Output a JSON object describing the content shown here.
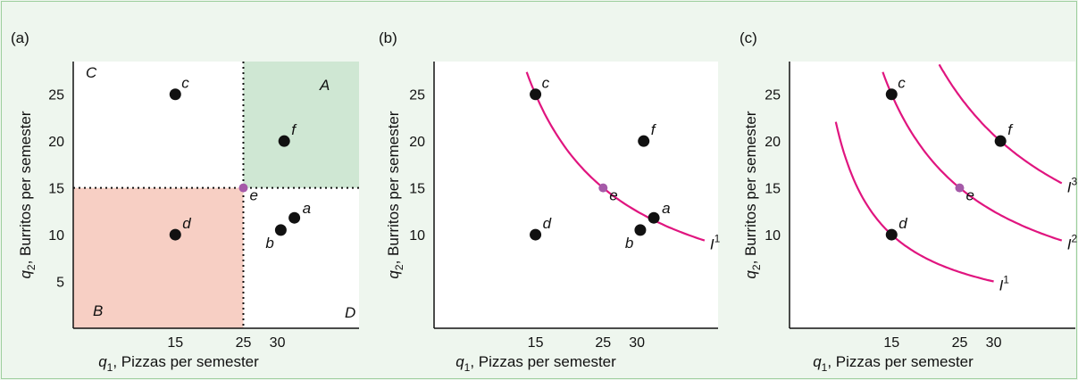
{
  "colors": {
    "background": "#eef6ee",
    "border": "#9ecf9e",
    "region_A": "#cfe7d3",
    "region_B": "#f7cfc4",
    "curve": "#e0157f",
    "point_e": "#a55aa8",
    "point": "#111111"
  },
  "chart_data": [
    {
      "type": "scatter",
      "panel_label": "(a)",
      "xlabel_var": "q",
      "xlabel_sub": "1",
      "xlabel_text": ", Pizzas per semester",
      "ylabel_var": "q",
      "ylabel_sub": "2",
      "ylabel_text": ", Burritos per semester",
      "xlim": [
        0,
        42
      ],
      "ylim": [
        0,
        28.5
      ],
      "xticks": [
        15,
        25,
        30
      ],
      "yticks": [
        5,
        10,
        15,
        20,
        25
      ],
      "points": [
        {
          "label": "c",
          "x": 15,
          "y": 25
        },
        {
          "label": "f",
          "x": 31,
          "y": 20
        },
        {
          "label": "d",
          "x": 15,
          "y": 10
        },
        {
          "label": "a",
          "x": 32.5,
          "y": 11.8
        },
        {
          "label": "b",
          "x": 30.5,
          "y": 10.5
        },
        {
          "label": "e",
          "x": 25,
          "y": 15,
          "highlight": true
        }
      ],
      "regions": [
        {
          "label": "A",
          "x": [
            25,
            42
          ],
          "y": [
            15,
            28.5
          ],
          "color": "#cfe7d3"
        },
        {
          "label": "B",
          "x": [
            0,
            25
          ],
          "y": [
            0,
            15
          ],
          "color": "#f7cfc4"
        },
        {
          "label": "C",
          "x": [
            0,
            25
          ],
          "y": [
            15,
            28.5
          ]
        },
        {
          "label": "D",
          "x": [
            25,
            42
          ],
          "y": [
            0,
            15
          ]
        }
      ],
      "reference_lines": {
        "x": 25,
        "y": 15
      }
    },
    {
      "type": "line",
      "panel_label": "(b)",
      "xlabel_var": "q",
      "xlabel_sub": "1",
      "xlabel_text": ", Pizzas per semester",
      "ylabel_var": "q",
      "ylabel_sub": "2",
      "ylabel_text": ", Burritos per semester",
      "xlim": [
        0,
        42
      ],
      "ylim": [
        0,
        28.5
      ],
      "xticks": [
        15,
        25,
        30
      ],
      "yticks": [
        10,
        15,
        20,
        25
      ],
      "points": [
        {
          "label": "c",
          "x": 15,
          "y": 25
        },
        {
          "label": "f",
          "x": 31,
          "y": 20
        },
        {
          "label": "e",
          "x": 25,
          "y": 15,
          "highlight": true
        },
        {
          "label": "a",
          "x": 32.5,
          "y": 11.8
        },
        {
          "label": "b",
          "x": 30.5,
          "y": 10.5
        },
        {
          "label": "d",
          "x": 15,
          "y": 10
        }
      ],
      "curves": [
        {
          "name": "I",
          "sup": "1",
          "k": 375,
          "x_from": 13.7,
          "x_to": 40
        }
      ]
    },
    {
      "type": "line",
      "panel_label": "(c)",
      "xlabel_var": "q",
      "xlabel_sub": "1",
      "xlabel_text": ", Pizzas per semester",
      "ylabel_var": "q",
      "ylabel_sub": "2",
      "ylabel_text": ", Burritos per semester",
      "xlim": [
        0,
        42
      ],
      "ylim": [
        0,
        28.5
      ],
      "xticks": [
        15,
        25,
        30
      ],
      "yticks": [
        10,
        15,
        20,
        25
      ],
      "points": [
        {
          "label": "c",
          "x": 15,
          "y": 25
        },
        {
          "label": "f",
          "x": 31,
          "y": 20
        },
        {
          "label": "e",
          "x": 25,
          "y": 15,
          "highlight": true
        },
        {
          "label": "d",
          "x": 15,
          "y": 10
        }
      ],
      "curves": [
        {
          "name": "I",
          "sup": "1",
          "k": 150,
          "x_from": 6.8,
          "x_to": 30
        },
        {
          "name": "I",
          "sup": "2",
          "k": 375,
          "x_from": 13.7,
          "x_to": 40
        },
        {
          "name": "I",
          "sup": "3",
          "k": 620,
          "x_from": 22,
          "x_to": 40
        }
      ]
    }
  ]
}
